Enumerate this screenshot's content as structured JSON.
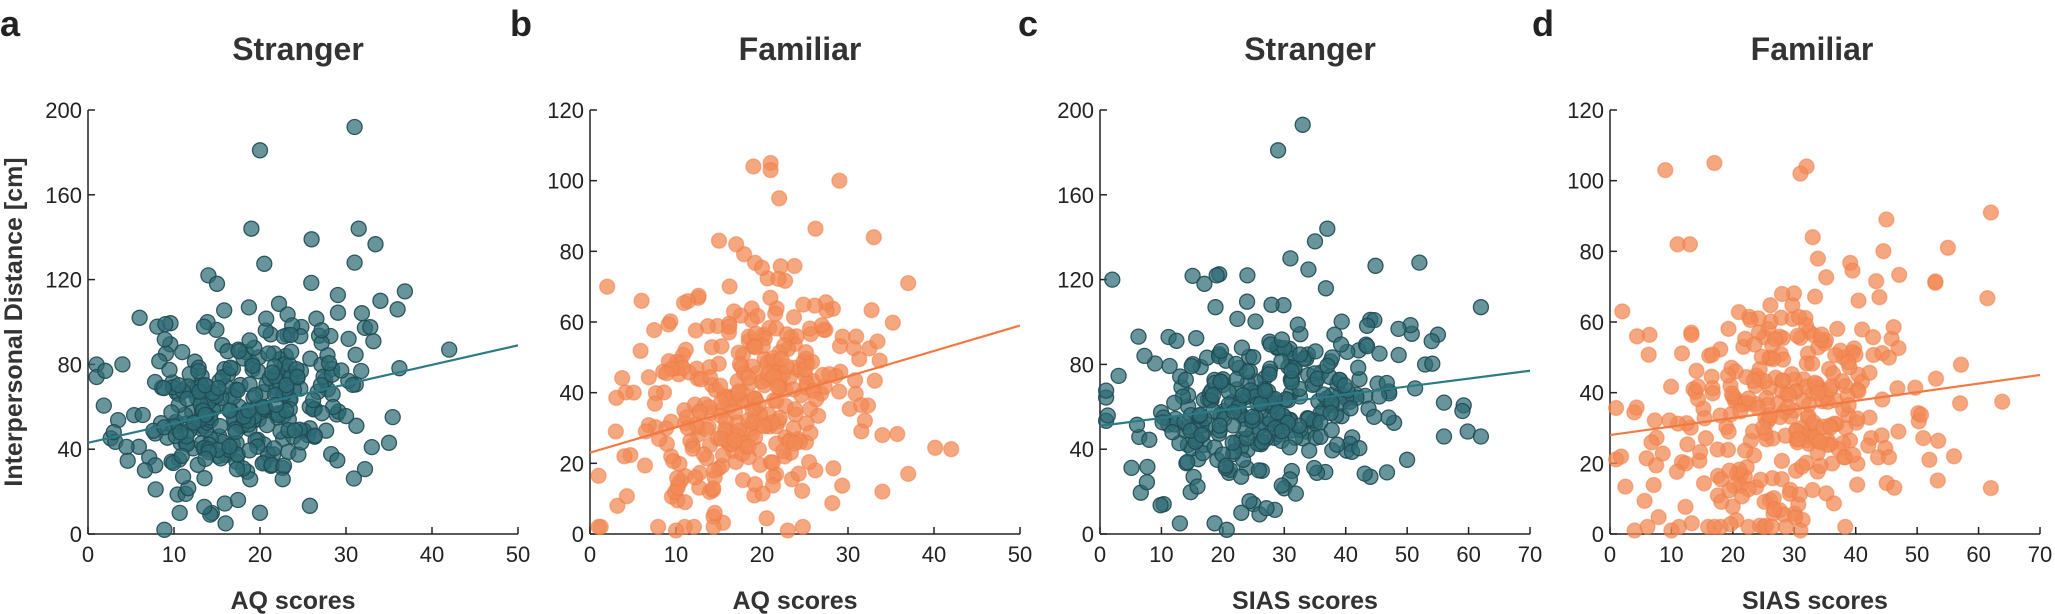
{
  "colors": {
    "stranger": "#2e6b74",
    "familiar": "#f28a55",
    "stranger_line": "#2c7b86",
    "familiar_line": "#f07a42"
  },
  "chart_data": [
    {
      "type": "scatter",
      "letter": "a",
      "title": "Stranger",
      "xlabel": "AQ scores",
      "ylabel": "Interpersonal Distance [cm]",
      "xlim": [
        0,
        50
      ],
      "ylim": [
        0,
        200
      ],
      "xticks": [
        0,
        10,
        20,
        30,
        40,
        50
      ],
      "yticks": [
        0,
        40,
        80,
        120,
        160,
        200
      ],
      "color": "stranger",
      "trend": {
        "x": [
          0,
          50
        ],
        "y": [
          43,
          89
        ]
      },
      "seed": 11,
      "n": 330,
      "xmean": 18,
      "xsd": 6.5,
      "ysd": 21,
      "extra": [
        [
          20,
          181
        ],
        [
          31,
          192
        ],
        [
          19,
          144
        ],
        [
          26,
          139
        ],
        [
          14,
          122
        ],
        [
          15,
          118
        ],
        [
          31,
          128
        ],
        [
          36,
          106
        ],
        [
          34,
          110
        ],
        [
          42,
          87
        ],
        [
          33,
          41
        ],
        [
          35,
          43
        ],
        [
          20,
          10
        ],
        [
          16,
          5
        ],
        [
          6,
          102
        ],
        [
          2,
          77
        ],
        [
          4,
          80
        ],
        [
          3,
          48
        ],
        [
          9,
          99
        ]
      ]
    },
    {
      "type": "scatter",
      "letter": "b",
      "title": "Familiar",
      "xlabel": "AQ scores",
      "ylabel": "",
      "xlim": [
        0,
        50
      ],
      "ylim": [
        0,
        120
      ],
      "xticks": [
        0,
        10,
        20,
        30,
        40,
        50
      ],
      "yticks": [
        0,
        20,
        40,
        60,
        80,
        100,
        120
      ],
      "color": "familiar",
      "trend": {
        "x": [
          0,
          50
        ],
        "y": [
          23,
          59
        ]
      },
      "seed": 23,
      "n": 330,
      "xmean": 18,
      "xsd": 6.5,
      "ysd": 17,
      "extra": [
        [
          19,
          104
        ],
        [
          21,
          105
        ],
        [
          21,
          103
        ],
        [
          29,
          100
        ],
        [
          22,
          95
        ],
        [
          15,
          83
        ],
        [
          17,
          82
        ],
        [
          33,
          84
        ],
        [
          37,
          71
        ],
        [
          42,
          24
        ],
        [
          37,
          17
        ],
        [
          34,
          12
        ],
        [
          34,
          28
        ],
        [
          2,
          70
        ],
        [
          3,
          29
        ],
        [
          4,
          22
        ],
        [
          6,
          66
        ],
        [
          11,
          2
        ],
        [
          10,
          1
        ],
        [
          23,
          1
        ]
      ]
    },
    {
      "type": "scatter",
      "letter": "c",
      "title": "Stranger",
      "xlabel": "SIAS scores",
      "ylabel": "",
      "xlim": [
        0,
        70
      ],
      "ylim": [
        0,
        200
      ],
      "xticks": [
        0,
        10,
        20,
        30,
        40,
        50,
        60,
        70
      ],
      "yticks": [
        0,
        40,
        80,
        120,
        160,
        200
      ],
      "color": "stranger",
      "trend": {
        "x": [
          0,
          70
        ],
        "y": [
          51,
          77
        ]
      },
      "seed": 37,
      "n": 330,
      "xmean": 28,
      "xsd": 11,
      "ysd": 21,
      "extra": [
        [
          29,
          181
        ],
        [
          33,
          193
        ],
        [
          37,
          144
        ],
        [
          35,
          138
        ],
        [
          31,
          130
        ],
        [
          2,
          120
        ],
        [
          17,
          118
        ],
        [
          19,
          122
        ],
        [
          24,
          122
        ],
        [
          52,
          128
        ],
        [
          62,
          107
        ],
        [
          55,
          94
        ],
        [
          54,
          91
        ],
        [
          56,
          62
        ],
        [
          59,
          58
        ],
        [
          62,
          46
        ],
        [
          56,
          46
        ],
        [
          50,
          35
        ],
        [
          13,
          5
        ],
        [
          23,
          10
        ]
      ]
    },
    {
      "type": "scatter",
      "letter": "d",
      "title": "Familiar",
      "xlabel": "SIAS scores",
      "ylabel": "",
      "xlim": [
        0,
        70
      ],
      "ylim": [
        0,
        120
      ],
      "xticks": [
        0,
        10,
        20,
        30,
        40,
        50,
        60,
        70
      ],
      "yticks": [
        0,
        20,
        40,
        60,
        80,
        100,
        120
      ],
      "color": "familiar",
      "trend": {
        "x": [
          0,
          70
        ],
        "y": [
          28,
          45
        ]
      },
      "seed": 53,
      "n": 330,
      "xmean": 28,
      "xsd": 11,
      "ysd": 17,
      "extra": [
        [
          9,
          103
        ],
        [
          17,
          105
        ],
        [
          32,
          104
        ],
        [
          31,
          102
        ],
        [
          62,
          91
        ],
        [
          45,
          89
        ],
        [
          55,
          81
        ],
        [
          33,
          84
        ],
        [
          13,
          82
        ],
        [
          11,
          82
        ],
        [
          2,
          63
        ],
        [
          62,
          13
        ],
        [
          57,
          37
        ],
        [
          56,
          22
        ],
        [
          52,
          21
        ],
        [
          4,
          1
        ],
        [
          31,
          1
        ],
        [
          17,
          2
        ],
        [
          10,
          1
        ]
      ]
    }
  ]
}
